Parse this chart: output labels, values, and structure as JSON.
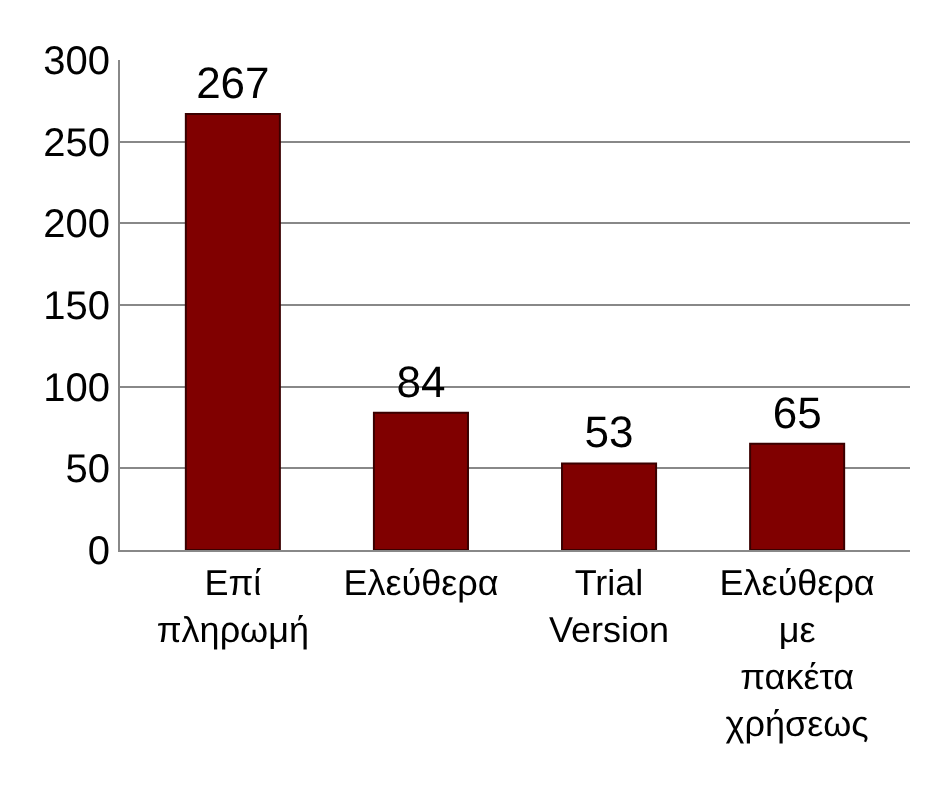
{
  "chart_data": {
    "type": "bar",
    "categories": [
      "Επί πληρωμή",
      "Ελεύθερα",
      "Trial Version",
      "Ελεύθερα με πακέτα χρήσεως"
    ],
    "values": [
      267,
      84,
      53,
      65
    ],
    "color": "#800000",
    "ylim": [
      0,
      300
    ],
    "yticks": [
      0,
      50,
      100,
      150,
      200,
      250,
      300
    ],
    "grid": "y",
    "data_labels": true,
    "legend": false
  }
}
